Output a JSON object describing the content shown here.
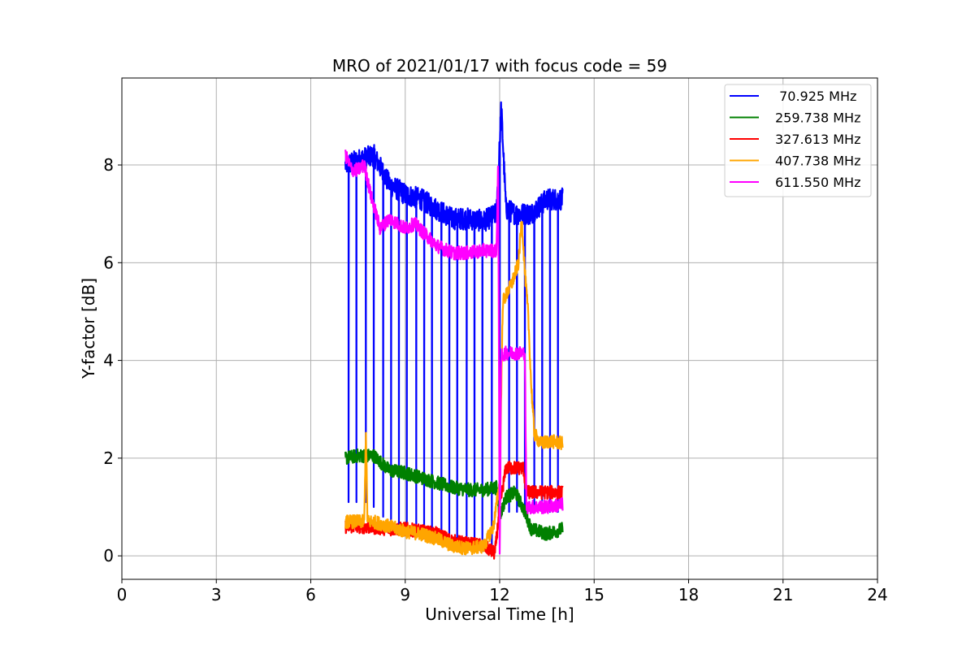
{
  "chart_data": {
    "type": "line",
    "title": "MRO of 2021/01/17 with focus code = 59",
    "xlabel": "Universal Time [h]",
    "ylabel": "Y-factor [dB]",
    "xlim": [
      0,
      24
    ],
    "ylim": [
      -0.48,
      9.78
    ],
    "xticks": [
      0,
      3,
      6,
      9,
      12,
      15,
      18,
      21,
      24
    ],
    "yticks": [
      0,
      2,
      4,
      6,
      8
    ],
    "grid": true,
    "legend_position": "top-right",
    "series": [
      {
        "name": " 70.925 MHz",
        "color": "#0000ff",
        "trace": [
          [
            7.1,
            8.0
          ],
          [
            7.5,
            8.1
          ],
          [
            8.0,
            8.2
          ],
          [
            8.5,
            7.6
          ],
          [
            9.0,
            7.4
          ],
          [
            9.5,
            7.3
          ],
          [
            10.0,
            7.1
          ],
          [
            10.5,
            6.9
          ],
          [
            11.0,
            6.9
          ],
          [
            11.5,
            6.85
          ],
          [
            11.9,
            7.0
          ],
          [
            12.05,
            9.2
          ],
          [
            12.2,
            7.1
          ],
          [
            12.5,
            7.0
          ],
          [
            13.0,
            7.0
          ],
          [
            13.5,
            7.3
          ],
          [
            14.0,
            7.3
          ]
        ],
        "dip_times": [
          7.2,
          7.45,
          7.75,
          8.0,
          8.3,
          8.55,
          8.8,
          9.05,
          9.35,
          9.6,
          9.85,
          10.15,
          10.4,
          10.65,
          10.95,
          11.2,
          11.45,
          11.75,
          12.0,
          12.3,
          12.55,
          12.8,
          13.1,
          13.35,
          13.6,
          13.85
        ],
        "dip_values": [
          1.1,
          1.1,
          1.1,
          1.0,
          0.8,
          0.7,
          0.6,
          0.6,
          0.5,
          0.4,
          0.4,
          0.3,
          0.3,
          0.2,
          0.2,
          0.1,
          0.1,
          0.1,
          0.6,
          0.9,
          0.9,
          0.9,
          0.9,
          0.9,
          0.9,
          0.9
        ]
      },
      {
        "name": "259.738 MHz",
        "color": "#008000",
        "trace": [
          [
            7.1,
            2.0
          ],
          [
            7.5,
            2.05
          ],
          [
            8.0,
            2.05
          ],
          [
            8.5,
            1.75
          ],
          [
            9.0,
            1.7
          ],
          [
            9.5,
            1.6
          ],
          [
            10.0,
            1.5
          ],
          [
            10.5,
            1.4
          ],
          [
            11.0,
            1.35
          ],
          [
            11.5,
            1.35
          ],
          [
            11.9,
            1.4
          ],
          [
            12.0,
            0.8
          ],
          [
            12.2,
            1.2
          ],
          [
            12.5,
            1.3
          ],
          [
            12.8,
            0.9
          ],
          [
            13.0,
            0.55
          ],
          [
            13.5,
            0.45
          ],
          [
            14.0,
            0.55
          ]
        ]
      },
      {
        "name": "327.613 MHz",
        "color": "#ff0000",
        "trace": [
          [
            7.1,
            0.6
          ],
          [
            7.5,
            0.6
          ],
          [
            8.0,
            0.58
          ],
          [
            8.5,
            0.55
          ],
          [
            9.0,
            0.55
          ],
          [
            9.5,
            0.5
          ],
          [
            10.0,
            0.45
          ],
          [
            10.5,
            0.3
          ],
          [
            11.0,
            0.25
          ],
          [
            11.5,
            0.2
          ],
          [
            11.85,
            0.05
          ],
          [
            12.0,
            1.0
          ],
          [
            12.2,
            1.8
          ],
          [
            12.5,
            1.8
          ],
          [
            12.75,
            1.8
          ],
          [
            12.85,
            1.3
          ],
          [
            13.2,
            1.3
          ],
          [
            13.6,
            1.3
          ],
          [
            14.0,
            1.3
          ]
        ]
      },
      {
        "name": "407.738 MHz",
        "color": "#ffa500",
        "trace": [
          [
            7.1,
            0.7
          ],
          [
            7.5,
            0.7
          ],
          [
            7.7,
            0.7
          ],
          [
            7.75,
            2.6
          ],
          [
            7.8,
            0.7
          ],
          [
            8.0,
            0.7
          ],
          [
            8.5,
            0.6
          ],
          [
            9.0,
            0.5
          ],
          [
            9.5,
            0.45
          ],
          [
            10.0,
            0.35
          ],
          [
            10.5,
            0.2
          ],
          [
            11.0,
            0.15
          ],
          [
            11.5,
            0.2
          ],
          [
            11.8,
            0.6
          ],
          [
            12.0,
            1.5
          ],
          [
            12.1,
            5.2
          ],
          [
            12.4,
            5.6
          ],
          [
            12.6,
            6.0
          ],
          [
            12.7,
            6.9
          ],
          [
            12.8,
            5.8
          ],
          [
            12.9,
            5.0
          ],
          [
            13.0,
            3.5
          ],
          [
            13.1,
            2.5
          ],
          [
            13.3,
            2.3
          ],
          [
            13.6,
            2.35
          ],
          [
            14.0,
            2.3
          ]
        ]
      },
      {
        "name": "611.550 MHz",
        "color": "#ff00ff",
        "trace": [
          [
            7.1,
            8.2
          ],
          [
            7.3,
            7.9
          ],
          [
            7.5,
            7.9
          ],
          [
            7.7,
            8.0
          ],
          [
            7.9,
            7.4
          ],
          [
            8.2,
            6.7
          ],
          [
            8.5,
            6.9
          ],
          [
            9.0,
            6.7
          ],
          [
            9.3,
            6.8
          ],
          [
            9.6,
            6.6
          ],
          [
            10.0,
            6.35
          ],
          [
            10.5,
            6.2
          ],
          [
            11.0,
            6.2
          ],
          [
            11.5,
            6.25
          ],
          [
            11.9,
            6.25
          ],
          [
            11.95,
            8.1
          ],
          [
            12.0,
            0.0
          ],
          [
            12.05,
            4.1
          ],
          [
            12.2,
            4.15
          ],
          [
            12.5,
            4.15
          ],
          [
            12.8,
            4.15
          ],
          [
            12.85,
            1.0
          ],
          [
            13.0,
            1.0
          ],
          [
            13.5,
            1.0
          ],
          [
            14.0,
            1.05
          ]
        ]
      }
    ]
  }
}
